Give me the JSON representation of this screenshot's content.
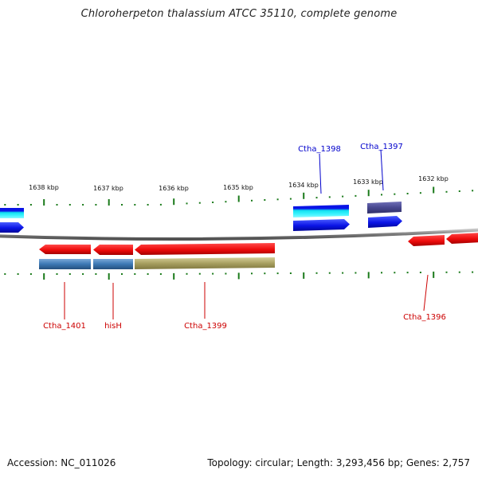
{
  "title": "Chloroherpeton thalassium ATCC 35110, complete genome",
  "footer": {
    "accession": "Accession: NC_011026",
    "stats": "Topology: circular; Length: 3,293,456 bp; Genes: 2,757"
  },
  "colors": {
    "backbone": "#808080",
    "tick": "#1a7a1a",
    "forward_label": "#0000cc",
    "reverse_label": "#cc0000",
    "forward_gene": "#0a14e6",
    "reverse_gene": "#e60a0a",
    "cds_steelblue": "#3c78b4",
    "cds_olive": "#a8a060",
    "cds_cyan": "#10e0f0",
    "cds_indigo": "#484890"
  },
  "ruler": {
    "labels": [
      "1638 kbp",
      "1637 kbp",
      "1636 kbp",
      "1635 kbp",
      "1634 kbp",
      "1633 kbp",
      "1632 kbp"
    ]
  },
  "gene_labels": {
    "forward": [
      "Ctha_1398",
      "Ctha_1397"
    ],
    "reverse": [
      "Ctha_1401",
      "hisH",
      "Ctha_1399",
      "Ctha_1396"
    ]
  }
}
